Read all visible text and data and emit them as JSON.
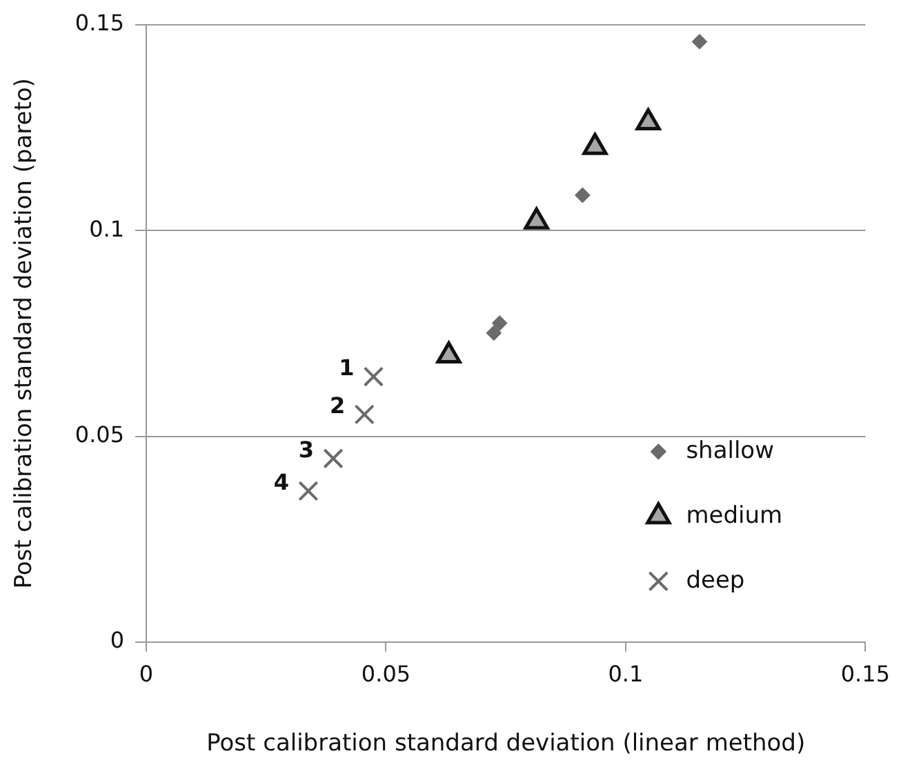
{
  "chart_data": {
    "type": "scatter",
    "xlabel": "Post calibration standard deviation (linear method)",
    "ylabel": "Post calibration standard deviation (pareto)",
    "series": [
      {
        "name": "shallow",
        "color": "#6b6b6b",
        "marker": "diamond",
        "x": [
          0.1154,
          0.091,
          0.0725,
          0.0737
        ],
        "values": [
          0.1459,
          0.1086,
          0.0751,
          0.0775
        ]
      },
      {
        "name": "medium",
        "color": "#a6a6a6",
        "marker": "triangle",
        "x": [
          0.1047,
          0.0936,
          0.0814,
          0.0631
        ],
        "values": [
          0.1263,
          0.1203,
          0.1022,
          0.0696
        ]
      },
      {
        "name": "deep",
        "color": "#6b6b6b",
        "marker": "cross",
        "x": [
          0.0474,
          0.0455,
          0.039,
          0.0338
        ],
        "values": [
          0.0645,
          0.0553,
          0.0446,
          0.0367
        ]
      }
    ],
    "annotations": [
      {
        "text": "1",
        "x": 0.0474,
        "y": 0.0645
      },
      {
        "text": "2",
        "x": 0.0455,
        "y": 0.0553
      },
      {
        "text": "3",
        "x": 0.039,
        "y": 0.0446
      },
      {
        "text": "4",
        "x": 0.0338,
        "y": 0.0367
      }
    ],
    "xlim": [
      0,
      0.15
    ],
    "xticks": [
      0,
      0.05,
      0.1,
      0.15
    ],
    "ylim": [
      0,
      0.15
    ],
    "yticks": [
      0,
      0.05,
      0.1,
      0.15
    ],
    "grid": "y",
    "legend": "bottom right"
  }
}
